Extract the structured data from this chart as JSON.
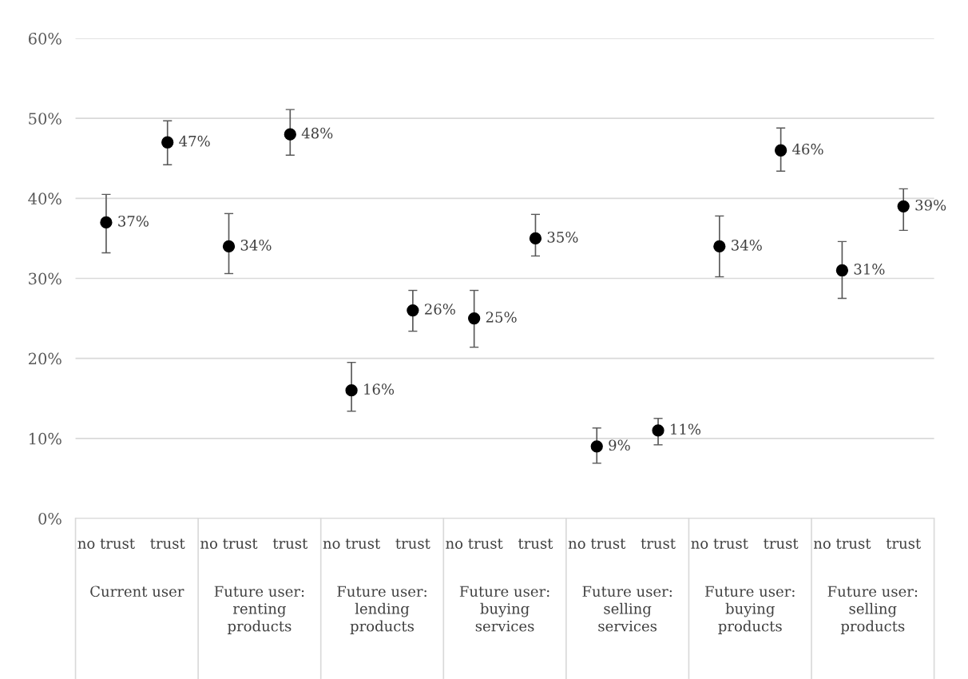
{
  "chart_data": {
    "type": "scatter",
    "categories": [
      "no trust",
      "trust",
      "no trust",
      "trust",
      "no trust",
      "trust",
      "no trust",
      "trust",
      "no trust",
      "trust",
      "no trust",
      "trust",
      "no trust",
      "trust"
    ],
    "values": [
      37,
      47,
      34,
      48,
      16,
      26,
      25,
      35,
      9,
      11,
      34,
      46,
      31,
      39
    ],
    "errors": [
      [
        33.2,
        40.5
      ],
      [
        44.2,
        49.7
      ],
      [
        30.6,
        38.1
      ],
      [
        45.4,
        51.1
      ],
      [
        13.4,
        19.5
      ],
      [
        23.4,
        28.5
      ],
      [
        21.4,
        28.5
      ],
      [
        32.8,
        38.0
      ],
      [
        6.9,
        11.3
      ],
      [
        9.2,
        12.5
      ],
      [
        30.2,
        37.8
      ],
      [
        43.4,
        48.8
      ],
      [
        27.5,
        34.6
      ],
      [
        36.0,
        41.2
      ]
    ],
    "color": "#000000",
    "annotations": [
      "Current user",
      "Future user: renting products",
      "Future user: lending products",
      "Future user: buying services",
      "Future user: selling services",
      "Future user: buying products",
      "Future user: selling products"
    ],
    "ylim": [
      0,
      60
    ],
    "yticks": [
      {
        "value": 0,
        "label": "0%"
      },
      {
        "value": 10,
        "label": "10%"
      },
      {
        "value": 20,
        "label": "20%"
      },
      {
        "value": 30,
        "label": "30%"
      },
      {
        "value": 40,
        "label": "40%"
      },
      {
        "value": 50,
        "label": "50%"
      },
      {
        "value": 60,
        "label": "60%"
      }
    ],
    "value_labels": [
      "37%",
      "47%",
      "34%",
      "48%",
      "16%",
      "26%",
      "25%",
      "35%",
      "9%",
      "11%",
      "34%",
      "46%",
      "31%",
      "39%"
    ],
    "grid": "y",
    "marker": "circle"
  }
}
